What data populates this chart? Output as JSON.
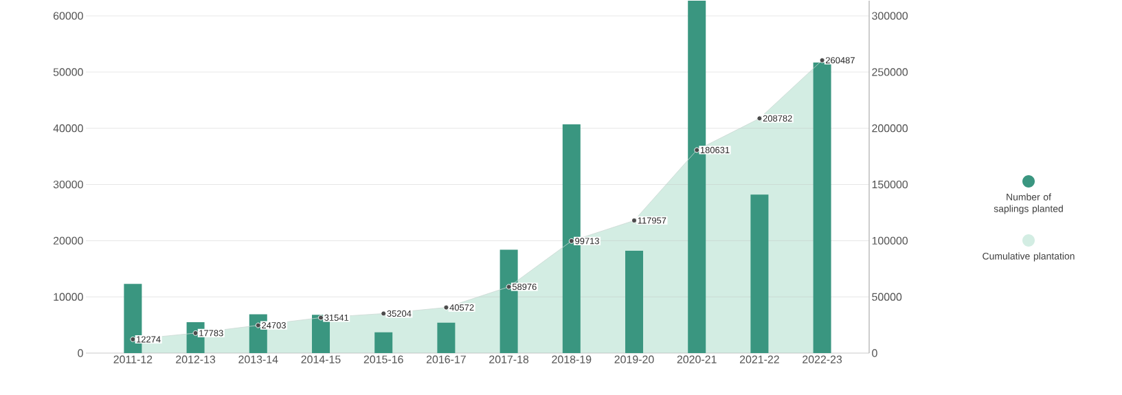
{
  "chart_data": {
    "type": "bar",
    "categories": [
      "2011-12",
      "2012-13",
      "2013-14",
      "2014-15",
      "2015-16",
      "2016-17",
      "2017-18",
      "2018-19",
      "2019-20",
      "2020-21",
      "2021-22",
      "2022-23"
    ],
    "series": [
      {
        "name": "Number of saplings planted",
        "color": "#3a9680",
        "values": [
          12300,
          5500,
          6900,
          6800,
          3700,
          5400,
          18400,
          40700,
          18200,
          62700,
          28200,
          51700
        ]
      },
      {
        "name": "Cumulative plantation",
        "type": "area",
        "axis": "y2",
        "color": "#d3ede3",
        "values": [
          12274,
          17783,
          24703,
          31541,
          35204,
          40572,
          58976,
          99713,
          117957,
          180631,
          208782,
          260487
        ],
        "data_labels": true
      }
    ],
    "ylim": [
      0,
      62700
    ],
    "yticks": [
      0,
      10000,
      20000,
      30000,
      40000,
      50000,
      60000
    ],
    "y2lim": [
      0,
      313500
    ],
    "y2ticks": [
      0,
      50000,
      100000,
      150000,
      200000,
      250000,
      300000
    ],
    "grid": "y",
    "legend": "right",
    "marker": "circle"
  }
}
